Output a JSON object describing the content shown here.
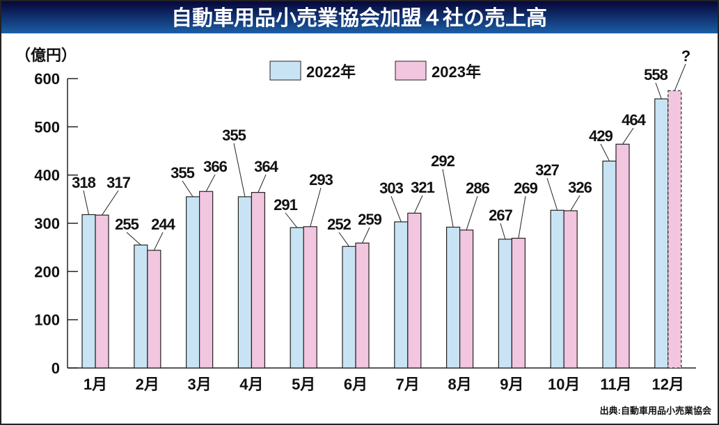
{
  "chart_data": {
    "type": "bar",
    "title": "自動車用品小売業協会加盟４社の売上高",
    "ylabel": "（億円）",
    "xlabel": "",
    "ylim": [
      0,
      600
    ],
    "yticks": [
      "0",
      "100",
      "200",
      "300",
      "400",
      "500",
      "600"
    ],
    "categories": [
      "1月",
      "2月",
      "3月",
      "4月",
      "5月",
      "6月",
      "7月",
      "8月",
      "9月",
      "10月",
      "11月",
      "12月"
    ],
    "series": [
      {
        "name": "2022年",
        "color": "#c8e4f4",
        "values": [
          318,
          255,
          355,
          355,
          291,
          252,
          303,
          292,
          267,
          327,
          429,
          558
        ],
        "labels": [
          "318",
          "255",
          "355",
          "355",
          "291",
          "252",
          "303",
          "292",
          "267",
          "327",
          "429",
          "558"
        ]
      },
      {
        "name": "2023年",
        "color": "#f1c6de",
        "values": [
          317,
          244,
          366,
          364,
          293,
          259,
          321,
          286,
          269,
          326,
          464,
          575
        ],
        "labels": [
          "317",
          "244",
          "366",
          "364",
          "293",
          "259",
          "321",
          "286",
          "269",
          "326",
          "464",
          "?"
        ],
        "estimated_last": true
      }
    ],
    "legend_position": "top-center",
    "grid": false,
    "source": "出典:自動車用品小売業協会"
  }
}
